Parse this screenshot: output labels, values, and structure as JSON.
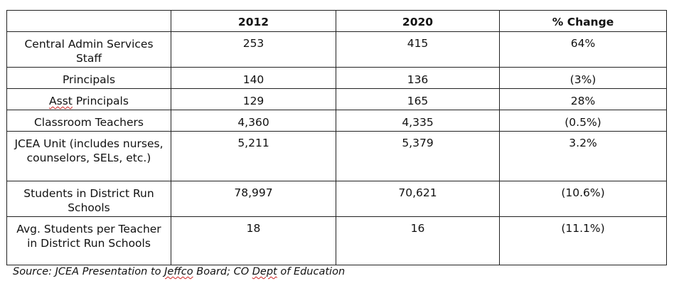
{
  "table": {
    "headers": [
      "",
      "2012",
      "2020",
      "% Change"
    ],
    "rows": [
      {
        "label": "Central Admin Services Staff",
        "y2012": "253",
        "y2020": "415",
        "change": "64%"
      },
      {
        "label_parts": [
          "Principals"
        ],
        "label": "Principals",
        "y2012": "140",
        "y2020": "136",
        "change": "(3%)"
      },
      {
        "label_a": "Asst",
        "label_b": " Principals",
        "y2012": "129",
        "y2020": "165",
        "change": "28%"
      },
      {
        "label": "Classroom Teachers",
        "y2012": "4,360",
        "y2020": "4,335",
        "change": "(0.5%)"
      },
      {
        "label": "JCEA Unit (includes nurses, counselors, SELs, etc.)",
        "y2012": "5,211",
        "y2020": "5,379",
        "change": "3.2%"
      },
      {
        "label": "Students in District Run Schools",
        "y2012": "78,997",
        "y2020": "70,621",
        "change": "(10.6%)"
      },
      {
        "label": "Avg. Students per Teacher in District Run Schools",
        "y2012": "18",
        "y2020": "16",
        "change": "(11.1%)"
      }
    ]
  },
  "source": {
    "prefix": "Source: JCEA Presentation to ",
    "word1": "Jeffco",
    "middle": " Board; CO ",
    "word2": "Dept",
    "suffix": " of Education"
  }
}
